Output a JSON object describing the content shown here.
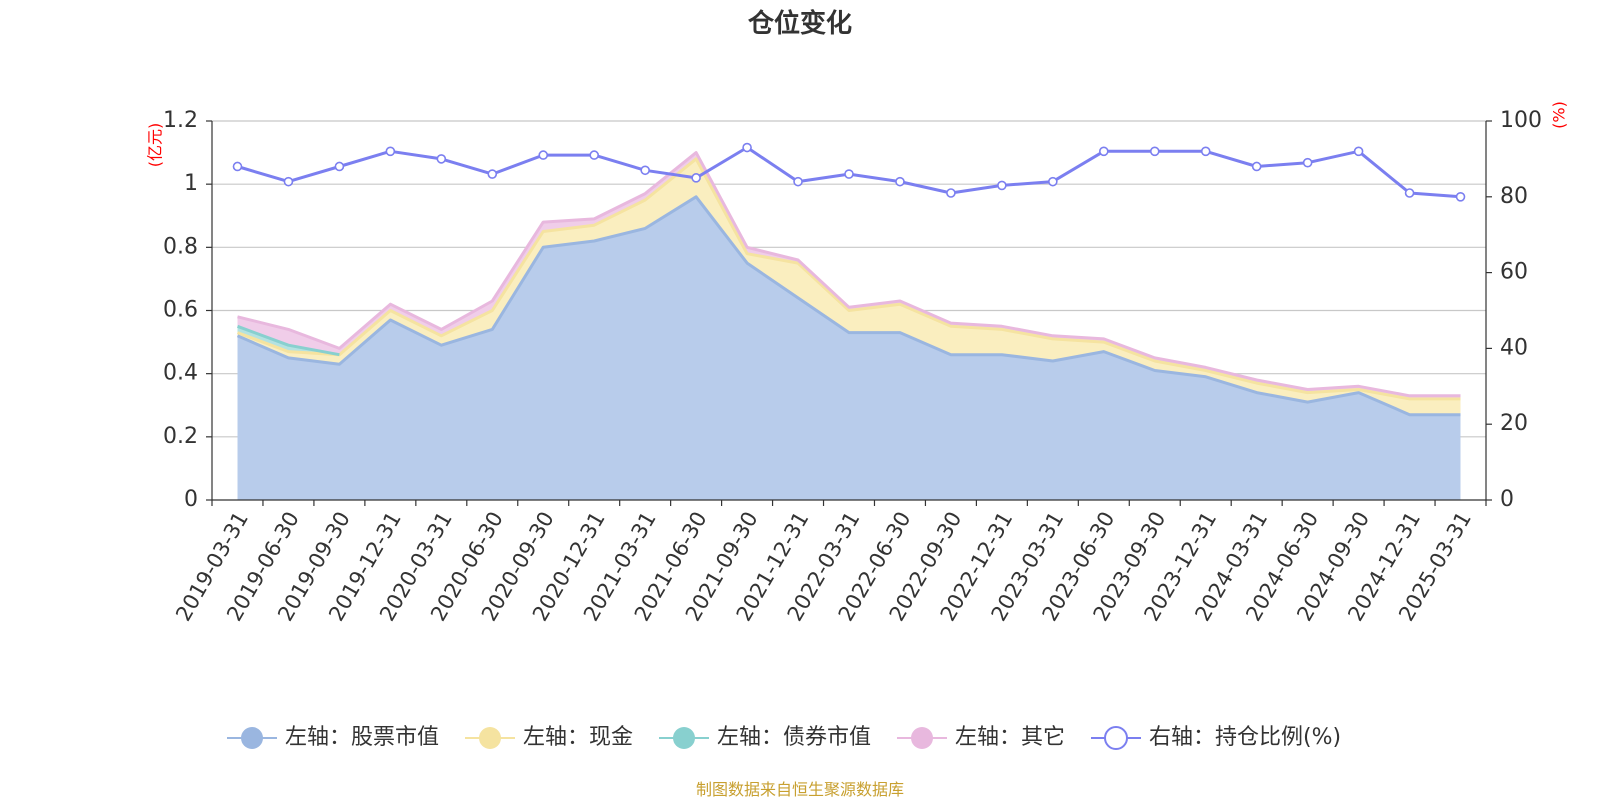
{
  "chart_data": {
    "type": "area",
    "title": "仓位变化",
    "source_note": "制图数据来自恒生聚源数据库",
    "left_unit": "(亿元)",
    "right_unit": "(%)",
    "categories": [
      "2019-03-31",
      "2019-06-30",
      "2019-09-30",
      "2019-12-31",
      "2020-03-31",
      "2020-06-30",
      "2020-09-30",
      "2020-12-31",
      "2021-03-31",
      "2021-06-30",
      "2021-09-30",
      "2021-12-31",
      "2022-03-31",
      "2022-06-30",
      "2022-09-30",
      "2022-12-31",
      "2023-03-31",
      "2023-06-30",
      "2023-09-30",
      "2023-12-31",
      "2024-03-31",
      "2024-06-30",
      "2024-09-30",
      "2024-12-31",
      "2025-03-31"
    ],
    "y_left": {
      "min": 0,
      "max": 1.2,
      "ticks": [
        "0",
        "0.2",
        "0.4",
        "0.6",
        "0.8",
        "1",
        "1.2"
      ]
    },
    "y_right": {
      "min": 0,
      "max": 100,
      "ticks": [
        "0",
        "20",
        "40",
        "60",
        "80",
        "100"
      ]
    },
    "grid": true,
    "legend_position": "bottom",
    "series": [
      {
        "name": "左轴：股票市值",
        "axis": "left",
        "stack": true,
        "color": "#9ab6e0",
        "fill": "#b8cceb",
        "values": [
          0.52,
          0.45,
          0.43,
          0.57,
          0.49,
          0.54,
          0.8,
          0.82,
          0.86,
          0.96,
          0.75,
          0.64,
          0.53,
          0.53,
          0.46,
          0.46,
          0.44,
          0.47,
          0.41,
          0.39,
          0.34,
          0.31,
          0.34,
          0.27,
          0.27
        ]
      },
      {
        "name": "左轴：现金",
        "axis": "left",
        "stack": true,
        "color": "#f5e3a0",
        "fill": "#faeebf",
        "values": [
          0.01,
          0.02,
          0.03,
          0.03,
          0.03,
          0.06,
          0.05,
          0.05,
          0.09,
          0.12,
          0.03,
          0.11,
          0.07,
          0.09,
          0.09,
          0.08,
          0.07,
          0.03,
          0.03,
          0.02,
          0.03,
          0.03,
          0.01,
          0.05,
          0.05
        ]
      },
      {
        "name": "左轴：债券市值",
        "axis": "left",
        "stack": true,
        "color": "#88d0cf",
        "fill": "#b4e2e1",
        "values": [
          0.02,
          0.02,
          0,
          0,
          0,
          0,
          0,
          0,
          0,
          0,
          0,
          0,
          0,
          0,
          0,
          0,
          0,
          0,
          0,
          0,
          0,
          0,
          0,
          0,
          0
        ]
      },
      {
        "name": "左轴：其它",
        "axis": "left",
        "stack": true,
        "color": "#e8b8de",
        "fill": "#f0cde9",
        "values": [
          0.03,
          0.05,
          0.02,
          0.02,
          0.02,
          0.03,
          0.03,
          0.02,
          0.02,
          0.02,
          0.02,
          0.01,
          0.01,
          0.01,
          0.01,
          0.01,
          0.01,
          0.01,
          0.01,
          0.01,
          0.01,
          0.01,
          0.01,
          0.01,
          0.01
        ]
      },
      {
        "name": "右轴：持仓比例(%)",
        "axis": "right",
        "type": "line",
        "color": "#7b7ff0",
        "values": [
          88,
          84,
          88,
          92,
          90,
          86,
          91,
          91,
          87,
          85,
          93,
          84,
          86,
          84,
          81,
          83,
          84,
          92,
          92,
          92,
          88,
          89,
          92,
          81,
          80
        ]
      }
    ]
  }
}
